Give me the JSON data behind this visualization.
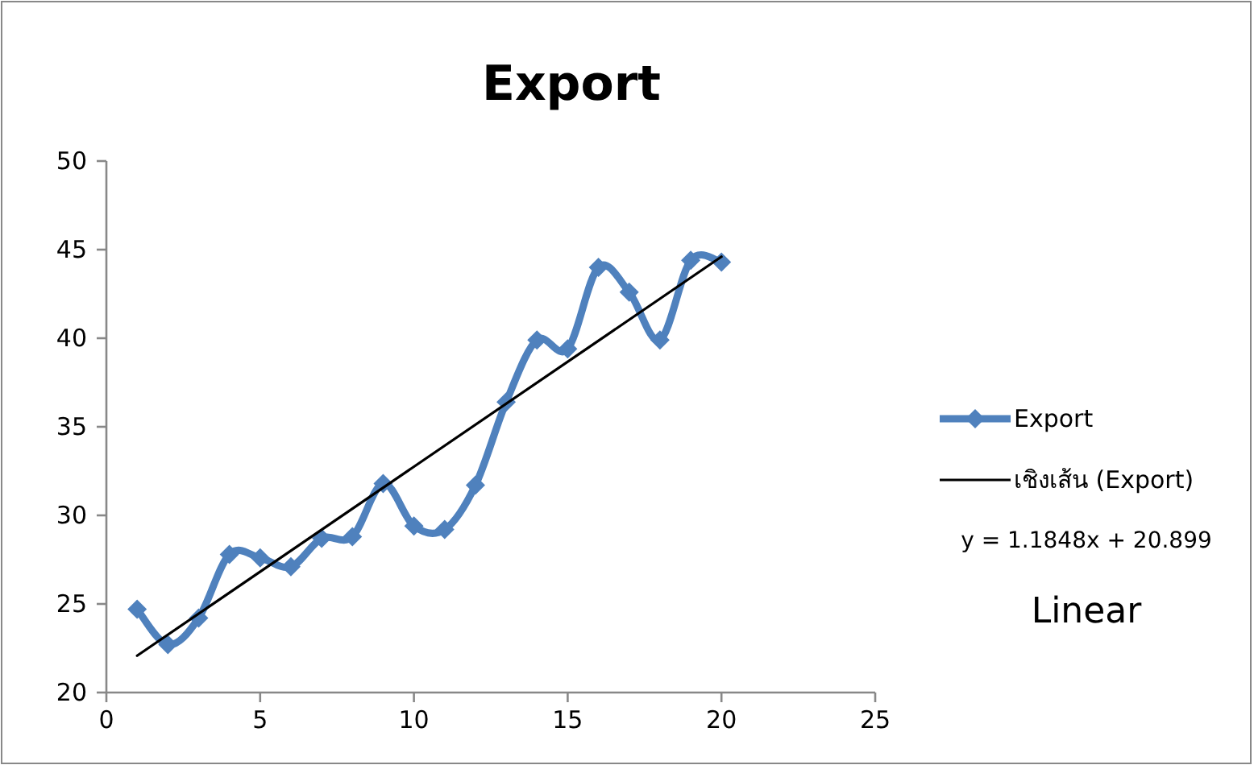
{
  "chart_data": {
    "type": "line",
    "title": "Export",
    "x": [
      1,
      2,
      3,
      4,
      5,
      6,
      7,
      8,
      9,
      10,
      11,
      12,
      13,
      14,
      15,
      16,
      17,
      18,
      19,
      20
    ],
    "series": [
      {
        "name": "Export",
        "color": "#4f81bd",
        "marker": "diamond",
        "values": [
          24.7,
          22.7,
          24.2,
          27.8,
          27.6,
          27.1,
          28.7,
          28.8,
          31.8,
          29.4,
          29.2,
          31.7,
          36.4,
          39.9,
          39.4,
          44.0,
          42.6,
          39.9,
          44.4,
          44.3
        ]
      },
      {
        "name": "เชิงเส้น (Export)",
        "color": "#000000",
        "marker": "none",
        "x": [
          1,
          20
        ],
        "values": [
          22.08,
          44.6
        ]
      }
    ],
    "xlim": [
      0,
      25
    ],
    "xticks": [
      0,
      5,
      10,
      15,
      20,
      25
    ],
    "ylim": [
      20,
      50
    ],
    "yticks": [
      20,
      25,
      30,
      35,
      40,
      45,
      50
    ],
    "grid": false,
    "legend": "right",
    "annotations": [
      "y = 1.1848x + 20.899",
      "Linear"
    ]
  }
}
